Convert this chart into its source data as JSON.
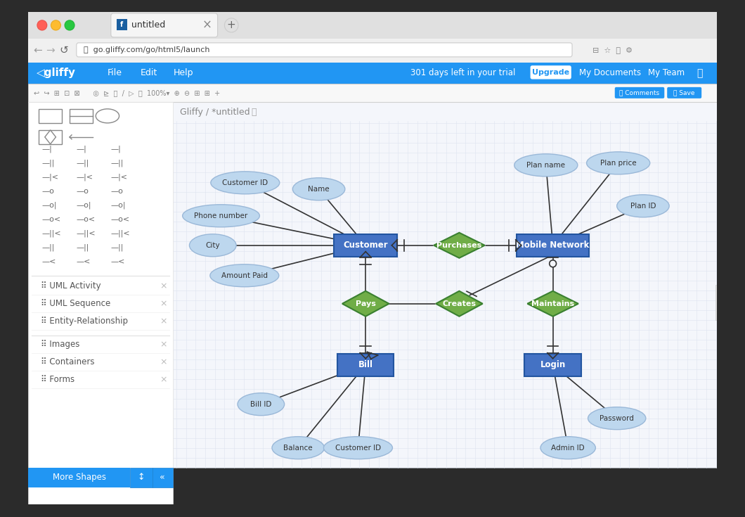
{
  "bg_outer": "#2b2b2b",
  "bg_window": "#ececec",
  "title_bar_color": "#e0e0e0",
  "tab_active_color": "#f5f5f5",
  "addr_bar_color": "#f5f5f5",
  "url": "go.gliffy.com/go/html5/launch",
  "navbar_color": "#2196f3",
  "navbar_items": [
    "File",
    "Edit",
    "Help"
  ],
  "navbar_right": "301 days left in your trial",
  "upgrade_btn": "Upgrade",
  "my_docs": "My Documents",
  "my_team": "My Team",
  "canvas_bg": "#f4f6fb",
  "grid_color": "#dde4f0",
  "sidebar_bg": "#ffffff",
  "sidebar_border": "#e0e0e0",
  "sidebar_items": [
    "UML Activity",
    "UML Sequence",
    "Entity-Relationship",
    "Images",
    "Containers",
    "Forms"
  ],
  "more_shapes_btn": "#2196f3",
  "breadcrumb": "Gliffy / *untitled",
  "entity_color": "#4472c4",
  "entity_text_color": "#ffffff",
  "relation_color": "#70ad47",
  "relation_text_color": "#ffffff",
  "attr_fill": "#bdd7ee",
  "attr_stroke": "#9ab8d8",
  "attr_text_color": "#333333",
  "line_color": "#333333",
  "comments_btn_color": "#2196f3",
  "save_btn_color": "#2196f3",
  "toolbar_bg": "#f8f8f8",
  "traffic_red": "#ff5f57",
  "traffic_yellow": "#febc2e",
  "traffic_green": "#28c840"
}
